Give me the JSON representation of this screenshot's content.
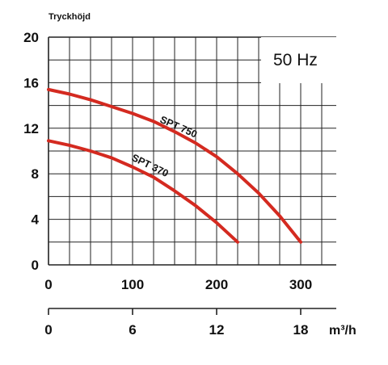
{
  "chart_data": {
    "type": "line",
    "ylabel": "Tryckhöjd",
    "yticks": [
      "0",
      "4",
      "8",
      "12",
      "16",
      "20"
    ],
    "ylim": [
      0,
      20
    ],
    "xticks": [
      "0",
      "100",
      "200",
      "300"
    ],
    "xlim": [
      0,
      340
    ],
    "x2label": "m³/h",
    "x2ticks": [
      "0",
      "6",
      "12",
      "18"
    ],
    "x2lim": [
      0,
      20.4
    ],
    "frequency_label": "50 Hz",
    "grid": true,
    "curve_color": "#d42a20",
    "series": [
      {
        "name": "SPT 750",
        "x": [
          0,
          25,
          50,
          75,
          100,
          125,
          150,
          175,
          200,
          225,
          250,
          275,
          300
        ],
        "y": [
          15.4,
          15.0,
          14.5,
          13.9,
          13.3,
          12.6,
          11.7,
          10.7,
          9.5,
          8.0,
          6.3,
          4.3,
          2.0
        ]
      },
      {
        "name": "SPT 370",
        "x": [
          0,
          25,
          50,
          75,
          100,
          125,
          150,
          175,
          200,
          225
        ],
        "y": [
          10.9,
          10.5,
          10.0,
          9.4,
          8.6,
          7.7,
          6.5,
          5.2,
          3.7,
          2.0
        ]
      }
    ]
  }
}
